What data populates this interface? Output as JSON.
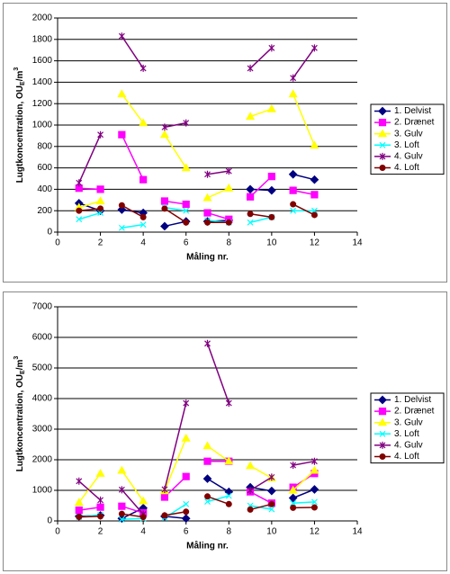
{
  "chart_data": [
    {
      "type": "line",
      "y_label": [
        "Lugtkoncentration, OU",
        "E",
        "/m",
        "3"
      ],
      "x_label": "Måling nr.",
      "xlim": [
        0,
        14
      ],
      "xticks": [
        0,
        2,
        4,
        6,
        8,
        10,
        12,
        14
      ],
      "ylim": [
        0,
        2000
      ],
      "yticks": [
        0,
        200,
        400,
        600,
        800,
        1000,
        1200,
        1400,
        1600,
        1800,
        2000
      ],
      "grid": true,
      "legend": "right",
      "x": [
        1,
        2,
        null,
        3,
        4,
        null,
        5,
        6,
        null,
        7,
        8,
        null,
        9,
        10,
        null,
        11,
        12
      ],
      "series": [
        {
          "name": "1. Delvist",
          "color": "#000080",
          "marker": "diamond",
          "values": [
            270,
            200,
            null,
            210,
            180,
            null,
            55,
            100,
            null,
            100,
            110,
            null,
            400,
            390,
            null,
            540,
            490
          ]
        },
        {
          "name": "2. Drænet",
          "color": "#ff00ff",
          "marker": "square",
          "values": [
            410,
            400,
            null,
            910,
            490,
            null,
            290,
            260,
            null,
            180,
            120,
            null,
            330,
            520,
            null,
            390,
            350
          ]
        },
        {
          "name": "3. Gulv",
          "color": "#ffff00",
          "marker": "triangle",
          "values": [
            230,
            290,
            null,
            1290,
            1020,
            null,
            910,
            600,
            null,
            320,
            410,
            null,
            1080,
            1150,
            null,
            1290,
            810
          ]
        },
        {
          "name": "3. Loft",
          "color": "#00ffff",
          "marker": "x",
          "values": [
            120,
            180,
            null,
            40,
            70,
            null,
            230,
            200,
            null,
            110,
            90,
            null,
            90,
            140,
            null,
            200,
            200
          ]
        },
        {
          "name": "4. Gulv",
          "color": "#800080",
          "marker": "star",
          "values": [
            460,
            910,
            null,
            1830,
            1530,
            null,
            980,
            1020,
            null,
            540,
            570,
            null,
            1530,
            1720,
            null,
            1440,
            1720
          ]
        },
        {
          "name": "4. Loft",
          "color": "#800000",
          "marker": "circle",
          "values": [
            200,
            220,
            null,
            250,
            140,
            null,
            220,
            90,
            null,
            90,
            90,
            null,
            170,
            140,
            null,
            260,
            160
          ]
        }
      ]
    },
    {
      "type": "line",
      "y_label": [
        "Lugtkoncentration, OU",
        "E",
        "/m",
        "3"
      ],
      "x_label": "Måling nr.",
      "xlim": [
        0,
        14
      ],
      "xticks": [
        0,
        2,
        4,
        6,
        8,
        10,
        12,
        14
      ],
      "ylim": [
        0,
        7000
      ],
      "yticks": [
        0,
        1000,
        2000,
        3000,
        4000,
        5000,
        6000,
        7000
      ],
      "grid": true,
      "legend": "right",
      "x": [
        1,
        2,
        null,
        3,
        4,
        null,
        5,
        6,
        null,
        7,
        8,
        null,
        9,
        10,
        null,
        11,
        12
      ],
      "series": [
        {
          "name": "1. Delvist",
          "color": "#000080",
          "marker": "diamond",
          "values": [
            150,
            180,
            null,
            80,
            420,
            null,
            150,
            80,
            null,
            1380,
            950,
            null,
            1100,
            980,
            null,
            750,
            1030
          ]
        },
        {
          "name": "2. Drænet",
          "color": "#ff00ff",
          "marker": "square",
          "values": [
            350,
            450,
            null,
            480,
            260,
            null,
            780,
            1450,
            null,
            1950,
            1950,
            null,
            950,
            580,
            null,
            1100,
            1550
          ]
        },
        {
          "name": "3. Gulv",
          "color": "#ffff00",
          "marker": "triangle",
          "values": [
            600,
            1550,
            null,
            1650,
            650,
            null,
            980,
            2700,
            null,
            2450,
            1950,
            null,
            1800,
            1400,
            null,
            1000,
            1650
          ]
        },
        {
          "name": "3. Loft",
          "color": "#00ffff",
          "marker": "x",
          "values": [
            130,
            200,
            null,
            50,
            80,
            null,
            100,
            550,
            null,
            630,
            820,
            null,
            500,
            380,
            null,
            580,
            620
          ]
        },
        {
          "name": "4. Gulv",
          "color": "#800080",
          "marker": "star",
          "values": [
            1300,
            680,
            null,
            1020,
            220,
            null,
            1030,
            3850,
            null,
            5800,
            3850,
            null,
            1000,
            1430,
            null,
            1820,
            1950
          ]
        },
        {
          "name": "4. Loft",
          "color": "#800000",
          "marker": "circle",
          "values": [
            130,
            150,
            null,
            230,
            130,
            null,
            180,
            300,
            null,
            800,
            550,
            null,
            370,
            550,
            null,
            430,
            440
          ]
        }
      ]
    }
  ]
}
